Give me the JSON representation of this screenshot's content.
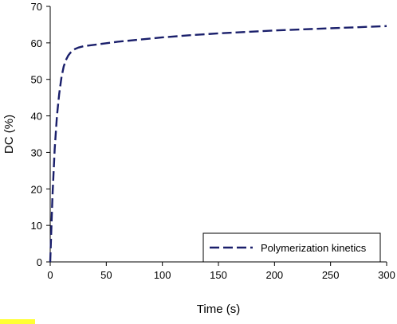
{
  "chart_data": {
    "type": "line",
    "title": "",
    "xlabel": "Time (s)",
    "ylabel": "DC (%)",
    "xlim": [
      0,
      300
    ],
    "ylim": [
      0,
      70
    ],
    "x_ticks": [
      0,
      50,
      100,
      150,
      200,
      250,
      300
    ],
    "y_ticks": [
      0,
      10,
      20,
      30,
      40,
      50,
      60,
      70
    ],
    "grid": false,
    "legend_position": "bottom-right",
    "series": [
      {
        "name": "Polymerization kinetics",
        "color": "#1a1f6b",
        "line_style": "dashed",
        "x": [
          0,
          2,
          4,
          6,
          8,
          10,
          12,
          14,
          16,
          18,
          20,
          22,
          25,
          30,
          35,
          40,
          50,
          60,
          80,
          100,
          125,
          150,
          175,
          200,
          225,
          250,
          275,
          300
        ],
        "y": [
          0,
          18,
          31,
          40,
          46,
          50.5,
          53.5,
          55.3,
          56.5,
          57.3,
          57.9,
          58.3,
          58.7,
          59.1,
          59.3,
          59.5,
          59.9,
          60.3,
          60.9,
          61.5,
          62.1,
          62.6,
          63.0,
          63.4,
          63.7,
          64.0,
          64.3,
          64.6
        ]
      }
    ]
  },
  "colors": {
    "axis": "#000000",
    "series": "#1a1f6b",
    "corner_mark": "#ffff33"
  }
}
